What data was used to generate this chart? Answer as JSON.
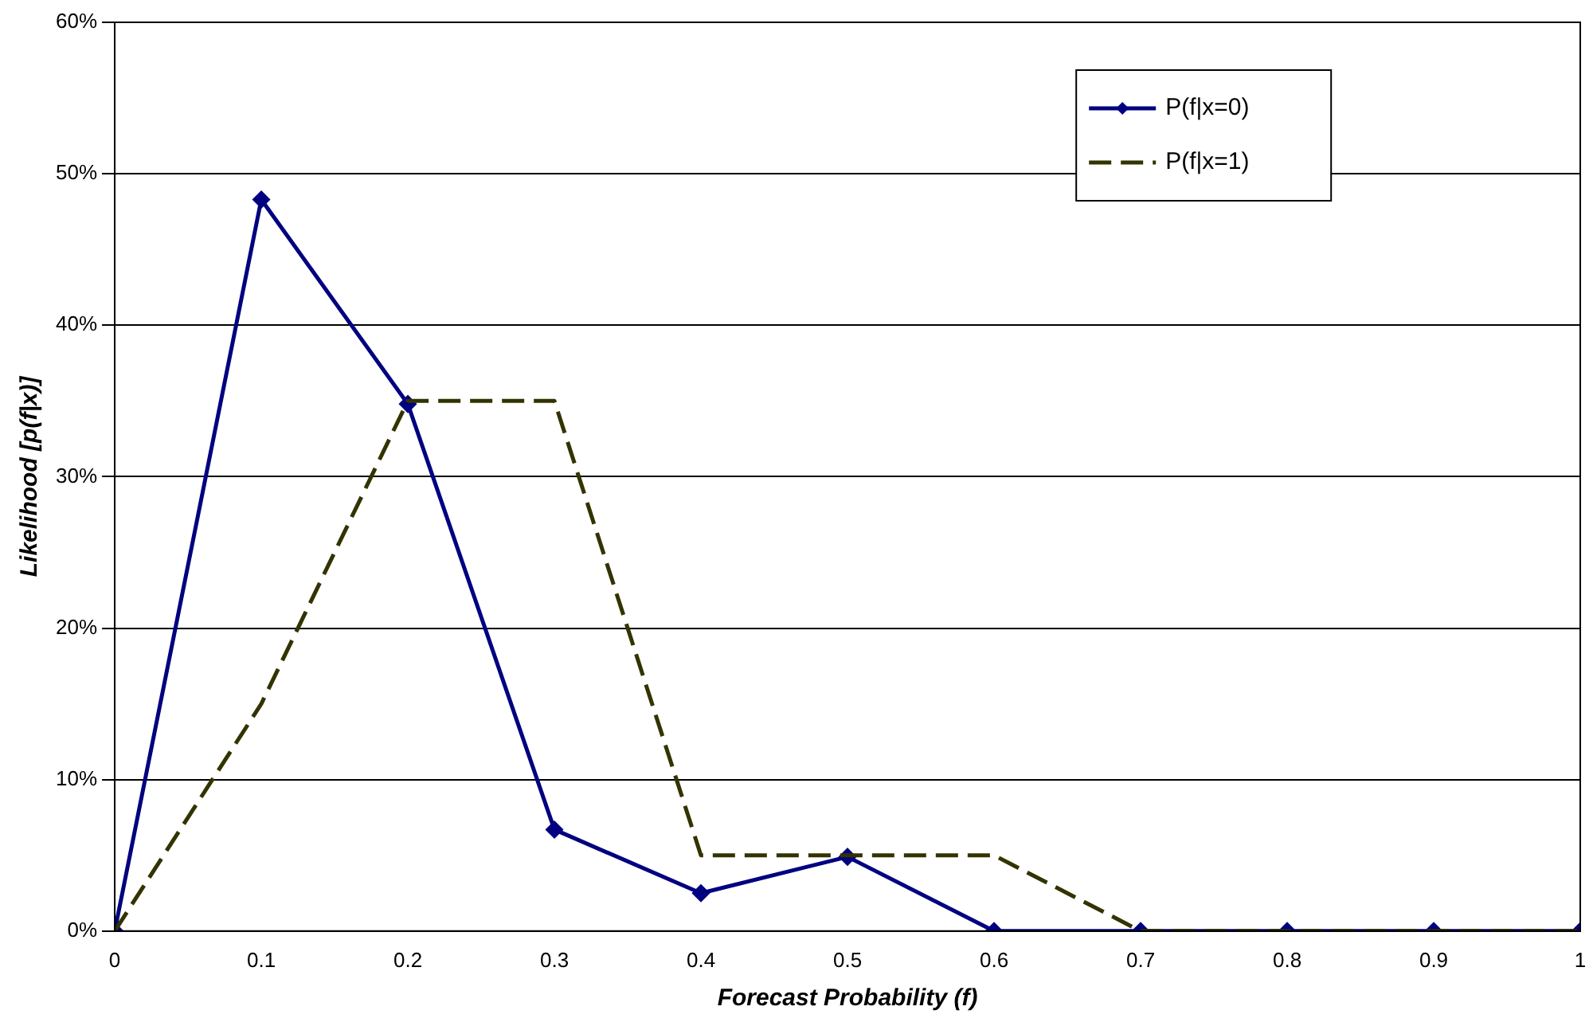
{
  "chart_data": {
    "type": "line",
    "xlabel": "Forecast Probability (f)",
    "ylabel": "Likelihood [p(f|x)]",
    "x": [
      0,
      0.1,
      0.2,
      0.3,
      0.4,
      0.5,
      0.6,
      0.7,
      0.8,
      0.9,
      1
    ],
    "series": [
      {
        "name": "P(f|x=0)",
        "color": "#000080",
        "marker": "diamond",
        "line_style": "solid",
        "values": [
          0,
          48.3,
          34.8,
          6.7,
          2.5,
          4.9,
          0,
          0,
          0,
          0,
          0
        ]
      },
      {
        "name": "P(f|x=1)",
        "color": "#333300",
        "marker": "none",
        "line_style": "dashed",
        "values": [
          0,
          15,
          35,
          35,
          5,
          5,
          5,
          0,
          0,
          0,
          0
        ]
      }
    ],
    "xlim": [
      0,
      1
    ],
    "xticks": [
      0,
      0.1,
      0.2,
      0.3,
      0.4,
      0.5,
      0.6,
      0.7,
      0.8,
      0.9,
      1
    ],
    "ylim": [
      0,
      60
    ],
    "yticks": [
      {
        "value": 0,
        "label": "0%"
      },
      {
        "value": 10,
        "label": "10%"
      },
      {
        "value": 20,
        "label": "20%"
      },
      {
        "value": 30,
        "label": "30%"
      },
      {
        "value": 40,
        "label": "40%"
      },
      {
        "value": 50,
        "label": "50%"
      },
      {
        "value": 60,
        "label": "60%"
      }
    ],
    "grid": "y",
    "legend": "top right"
  }
}
